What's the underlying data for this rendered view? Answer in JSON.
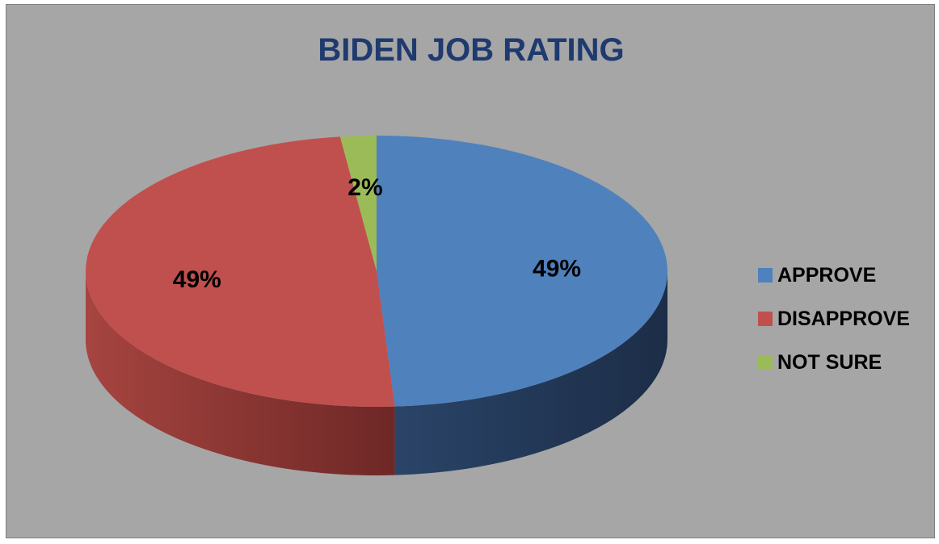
{
  "chart_data": {
    "type": "pie",
    "title": "BIDEN JOB RATING",
    "slices": [
      {
        "label": "APPROVE",
        "value": 49,
        "display": "49%",
        "color": "#4f81bd",
        "side_color": "#1f3250"
      },
      {
        "label": "DISAPPROVE",
        "value": 49,
        "display": "49%",
        "color": "#c0504d",
        "side_color": "#7a2e2c"
      },
      {
        "label": "NOT SURE",
        "value": 2,
        "display": "2%",
        "color": "#9bbb59",
        "side_color": "#5f7a30"
      }
    ],
    "legend_position": "right",
    "style": "3d"
  }
}
